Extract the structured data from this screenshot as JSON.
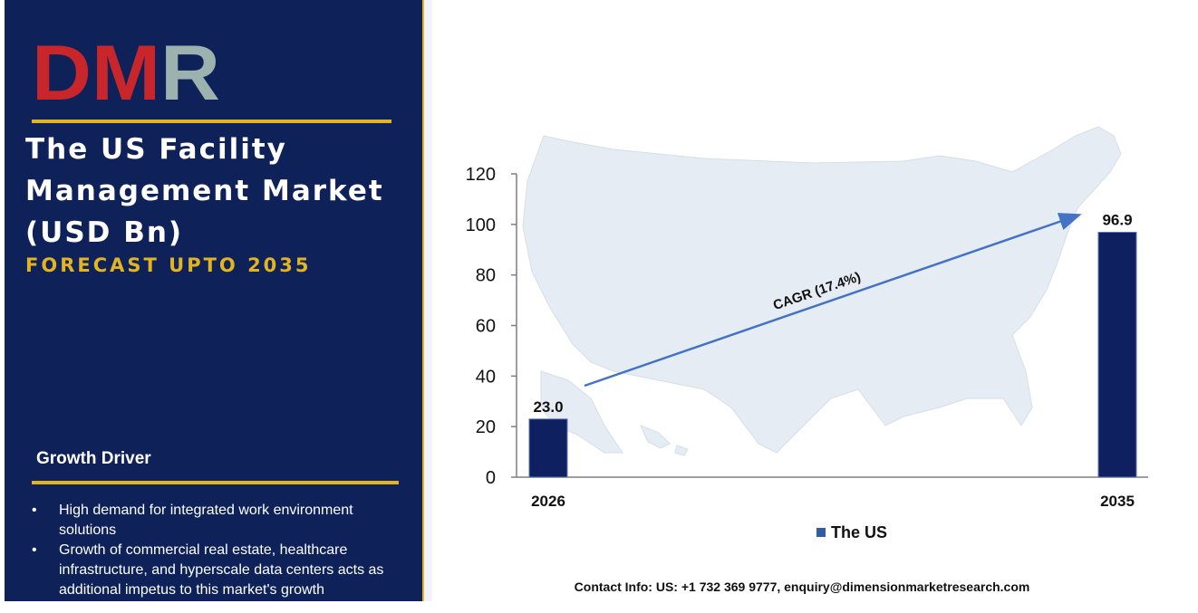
{
  "brand": {
    "logo_text": "DMR"
  },
  "infographic": {
    "title": "The US Facility Management Market (USD Bn)",
    "subtitle": "FORECAST UPTO 2035",
    "growth_driver_heading": "Growth Driver",
    "growth_drivers": [
      "High demand for integrated work environment solutions",
      "Growth of commercial real estate, healthcare infrastructure, and hyperscale data centers acts as additional impetus to this market's growth"
    ],
    "contact": "Contact Info: US: +1 732 369 9777, enquiry@dimensionmarketresearch.com"
  },
  "colors": {
    "panel_bg": "#0e2259",
    "accent_gold": "#e3b422",
    "bar": "#0e2060",
    "trend_arrow": "#4472c4",
    "map_fill": "#e6ecf3"
  },
  "chart_data": {
    "type": "bar",
    "categories": [
      "2026",
      "2035"
    ],
    "series": [
      {
        "name": "The US",
        "values": [
          23.0,
          96.9
        ]
      }
    ],
    "data_labels": [
      "23.0",
      "96.9"
    ],
    "ylim": [
      0,
      120
    ],
    "yticks": [
      0,
      20,
      40,
      60,
      80,
      100,
      120
    ],
    "annotation": "CAGR (17.4%)",
    "legend": "bottom-center",
    "grid": false,
    "background": "US map silhouette"
  }
}
